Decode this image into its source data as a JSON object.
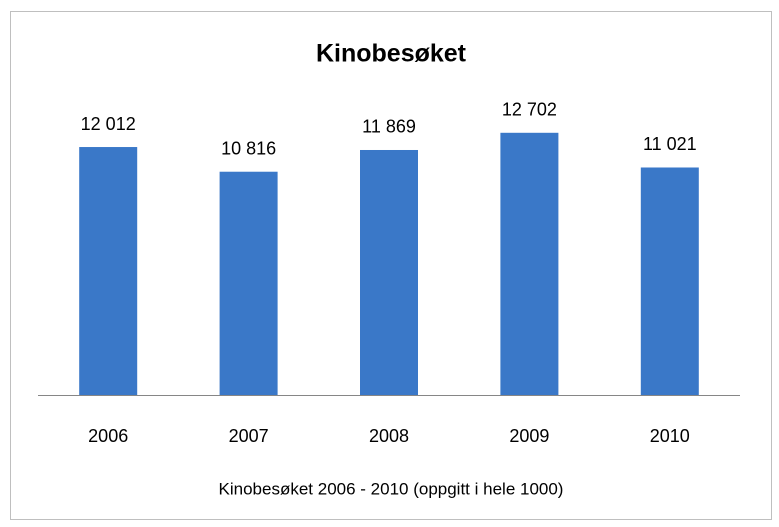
{
  "chart_data": {
    "type": "bar",
    "title": "Kinobesøket",
    "x_label": "Kinobesøket 2006 - 2010 (oppgitt i hele 1000)",
    "categories": [
      "2006",
      "2007",
      "2008",
      "2009",
      "2010"
    ],
    "values": [
      12012,
      10816,
      11869,
      12702,
      11021
    ],
    "value_labels": [
      "12 012",
      "10 816",
      "11 869",
      "12 702",
      "11 021"
    ],
    "color": "#3a78c8",
    "ylim": [
      0,
      14000
    ]
  }
}
